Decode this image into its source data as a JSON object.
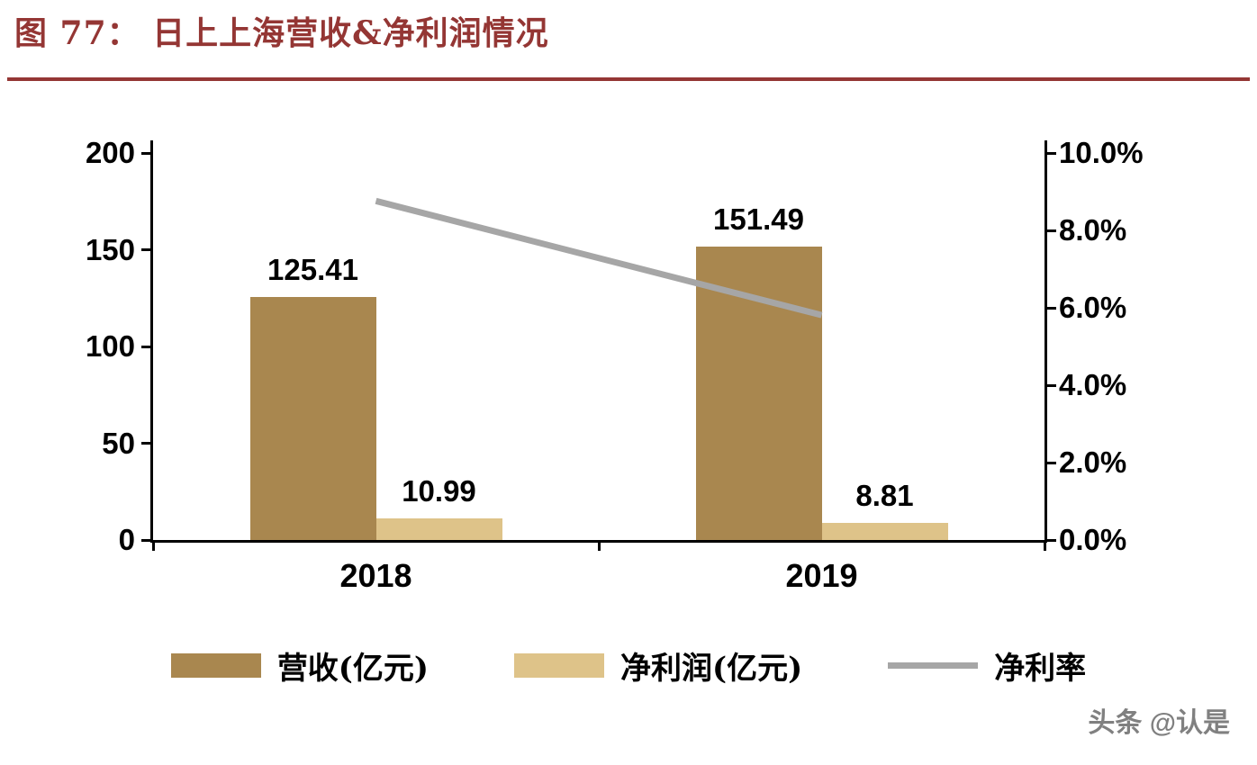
{
  "figure": {
    "title": "图 77： 日上上海营收&净利润情况",
    "watermark": "头条 @认是"
  },
  "colors": {
    "title": "#943634",
    "divider": "#943634",
    "axis": "#000000",
    "revenue_bar": "#A9874F",
    "profit_bar": "#DEC389",
    "margin_line": "#A6A6A6",
    "watermark": "#808080"
  },
  "chart_data": {
    "type": "bar",
    "subtype": "combo-bar-line-dual-axis",
    "title": "图 77： 日上上海营收&净利润情况",
    "categories": [
      "2018",
      "2019"
    ],
    "series": [
      {
        "key": "revenue",
        "name": "营收(亿元)",
        "kind": "bar",
        "axis": "left",
        "color": "#A9874F",
        "values": [
          125.41,
          151.49
        ],
        "labels": [
          "125.41",
          "151.49"
        ]
      },
      {
        "key": "net-profit",
        "name": "净利润(亿元)",
        "kind": "bar",
        "axis": "left",
        "color": "#DEC389",
        "values": [
          10.99,
          8.81
        ],
        "labels": [
          "10.99",
          "8.81"
        ]
      },
      {
        "key": "net-margin",
        "name": "净利率",
        "kind": "line",
        "axis": "right",
        "color": "#A6A6A6",
        "values": [
          8.76,
          5.81
        ]
      }
    ],
    "left_axis": {
      "min": 0,
      "max": 200,
      "tick_labels": [
        "200",
        "150",
        "100",
        "50",
        "0"
      ]
    },
    "right_axis": {
      "min": 0,
      "max": 10,
      "tick_labels": [
        "10.0%",
        "8.0%",
        "6.0%",
        "4.0%",
        "2.0%",
        "0.0%"
      ]
    },
    "legend_position": "bottom",
    "grid": false
  }
}
